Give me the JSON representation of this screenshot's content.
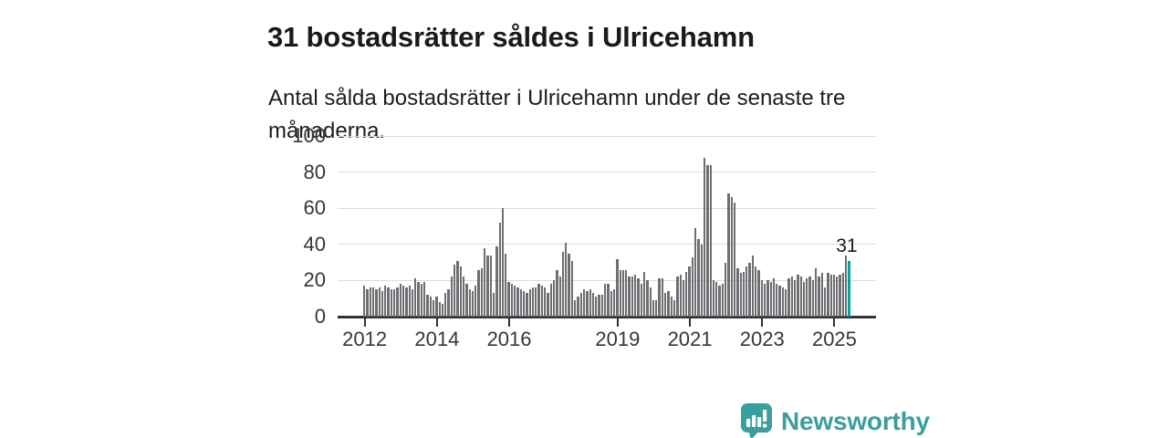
{
  "header": {
    "title": "31 bostadsrätter såldes i Ulricehamn",
    "subtitle": "Antal sålda bostadsrätter i Ulricehamn under de senaste tre månaderna."
  },
  "chart_data": {
    "type": "bar",
    "title": "Antal sålda bostadsrätter i Ulricehamn under de senaste tre månaderna",
    "x_axis": "månad, 2012–2025",
    "ylabel": "",
    "ylim": [
      0,
      100
    ],
    "yticks": [
      0,
      20,
      40,
      60,
      80,
      100
    ],
    "grid": true,
    "xticks": [
      {
        "label": "2012",
        "month_index": 0
      },
      {
        "label": "2014",
        "month_index": 24
      },
      {
        "label": "2016",
        "month_index": 48
      },
      {
        "label": "2019",
        "month_index": 84
      },
      {
        "label": "2021",
        "month_index": 108
      },
      {
        "label": "2023",
        "month_index": 132
      },
      {
        "label": "2025",
        "month_index": 156
      }
    ],
    "values": [
      17,
      15,
      16,
      16,
      15,
      16,
      14,
      17,
      16,
      15,
      15,
      16,
      18,
      17,
      16,
      17,
      15,
      21,
      19,
      18,
      19,
      12,
      11,
      9,
      11,
      8,
      7,
      13,
      15,
      22,
      29,
      31,
      28,
      22,
      18,
      15,
      14,
      17,
      26,
      27,
      38,
      34,
      34,
      13,
      39,
      52,
      60,
      35,
      19,
      18,
      17,
      16,
      15,
      14,
      13,
      15,
      16,
      16,
      18,
      17,
      16,
      13,
      18,
      20,
      26,
      22,
      36,
      41,
      35,
      31,
      9,
      11,
      13,
      15,
      14,
      15,
      13,
      11,
      12,
      12,
      18,
      18,
      14,
      15,
      32,
      26,
      26,
      26,
      22,
      22,
      23,
      21,
      18,
      25,
      20,
      16,
      9,
      9,
      21,
      21,
      13,
      14,
      11,
      9,
      22,
      23,
      20,
      25,
      28,
      33,
      49,
      43,
      40,
      88,
      84,
      84,
      20,
      19,
      17,
      18,
      30,
      68,
      66,
      63,
      27,
      24,
      25,
      28,
      30,
      34,
      28,
      26,
      20,
      18,
      20,
      19,
      21,
      18,
      17,
      16,
      15,
      21,
      22,
      20,
      23,
      22,
      19,
      21,
      22,
      20,
      27,
      22,
      24,
      16,
      24,
      23,
      23,
      22,
      23,
      24,
      34,
      31
    ],
    "highlight_last_bar": true,
    "annotation": {
      "text": "31",
      "value": 31
    },
    "bar_color": "#6e6e73",
    "highlight_color": "#00a2a2",
    "grid_color": "#dcdcdc",
    "axis_color": "#333333",
    "label_color": "#363636"
  },
  "footer": {
    "brand": "Newsworthy",
    "brand_color": "#3aa09e",
    "logo_icon": "bar-chart-speech-bubble"
  }
}
